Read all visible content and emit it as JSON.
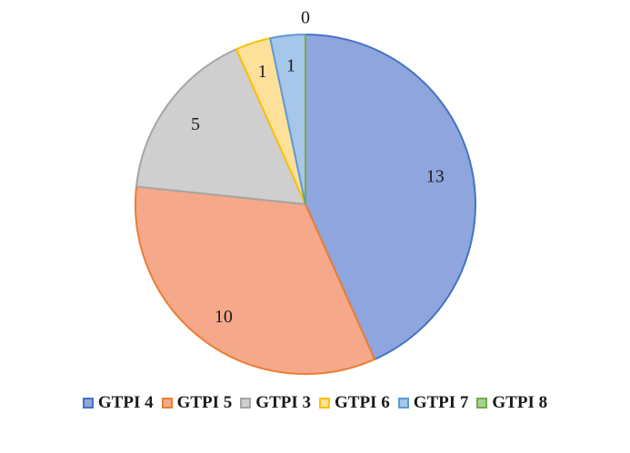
{
  "chart_data": {
    "type": "pie",
    "title": "",
    "categories": [
      "GTPI 4",
      "GTPI 5",
      "GTPI 3",
      "GTPI 6",
      "GTPI 7",
      "GTPI 8"
    ],
    "values": [
      13,
      10,
      5,
      1,
      1,
      0
    ],
    "data_labels": [
      "13",
      "10",
      "5",
      "1",
      "1",
      "0"
    ],
    "fill_colors": [
      "#8fa5dd",
      "#f5a98a",
      "#cfcfcf",
      "#fde09a",
      "#a6c6ea",
      "#a9d28f"
    ],
    "stroke_colors": [
      "#4472c4",
      "#ed7d31",
      "#a5a5a5",
      "#ffc000",
      "#5b9bd5",
      "#70ad47"
    ],
    "start_angle_deg": 0,
    "direction": "clockwise",
    "legend_position": "bottom"
  }
}
